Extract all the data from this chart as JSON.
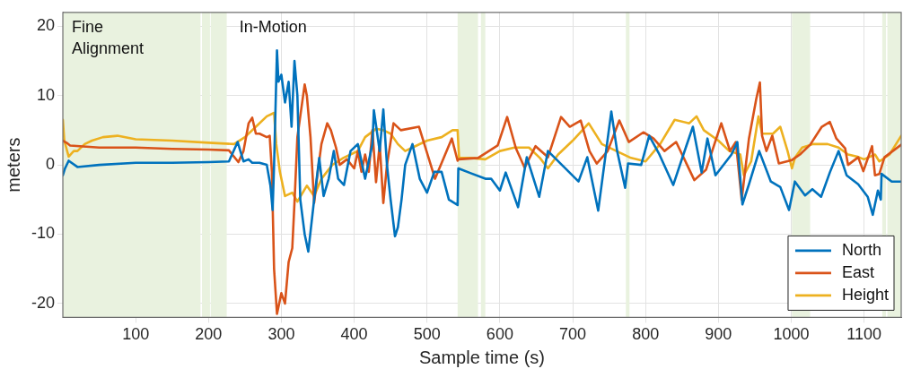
{
  "chart_data": {
    "type": "line",
    "xlabel": "Sample time (s)",
    "ylabel": "meters",
    "xlim": [
      0,
      1151
    ],
    "ylim": [
      -22,
      22
    ],
    "xticks": [
      100,
      200,
      300,
      400,
      500,
      600,
      700,
      800,
      900,
      1000,
      1100
    ],
    "yticks": [
      -20,
      -10,
      0,
      10,
      20
    ],
    "grid": true,
    "legend": "bottom right",
    "marker": "none",
    "line_style": "solid",
    "annotations": [
      "Fine Alignment",
      "In-Motion"
    ],
    "bands": [
      {
        "axis": "x",
        "from": 0,
        "to": 189,
        "color": "#e9f2df"
      },
      {
        "axis": "x",
        "from": 191,
        "to": 202,
        "color": "#e9f2df"
      },
      {
        "axis": "x",
        "from": 203,
        "to": 225,
        "color": "#e9f2df"
      },
      {
        "axis": "x",
        "from": 542,
        "to": 570,
        "color": "#e9f2df"
      },
      {
        "axis": "x",
        "from": 574,
        "to": 580,
        "color": "#e9f2df"
      },
      {
        "axis": "x",
        "from": 773,
        "to": 778,
        "color": "#e9f2df"
      },
      {
        "axis": "x",
        "from": 1001,
        "to": 1026,
        "color": "#e9f2df"
      },
      {
        "axis": "x",
        "from": 1125,
        "to": 1130,
        "color": "#e9f2df"
      },
      {
        "axis": "x",
        "from": 1132,
        "to": 1151,
        "color": "#e9f2df"
      }
    ],
    "series": [
      {
        "name": "North",
        "color": "#0072bd",
        "x": [
          0,
          3,
          8,
          20,
          50,
          100,
          150,
          200,
          228,
          240,
          248,
          255,
          260,
          270,
          280,
          285,
          288,
          290,
          294,
          296,
          300,
          305,
          310,
          314,
          318,
          322,
          326,
          332,
          337,
          345,
          352,
          358,
          365,
          372,
          378,
          386,
          395,
          405,
          415,
          425,
          427,
          435,
          440,
          445,
          450,
          456,
          460,
          465,
          470,
          480,
          490,
          500,
          510,
          520,
          530,
          542,
          543,
          560,
          580,
          588,
          600,
          608,
          625,
          637,
          654,
          666,
          687,
          708,
          720,
          735,
          753,
          761,
          772,
          776,
          794,
          805,
          819,
          838,
          852,
          865,
          877,
          885,
          896,
          918,
          926,
          933,
          942,
          956,
          972,
          985,
          997,
          1005,
          1019,
          1029,
          1041,
          1053,
          1065,
          1076,
          1092,
          1105,
          1112,
          1119,
          1123,
          1124,
          1138,
          1151
        ],
        "values": [
          -1.5,
          -0.5,
          0.6,
          -0.3,
          0,
          0.3,
          0.3,
          0.4,
          0.5,
          3.3,
          0.5,
          0.8,
          0.3,
          0.3,
          0,
          -3,
          -6.5,
          0,
          16.5,
          12,
          13,
          9,
          12,
          5.5,
          15,
          10,
          -5,
          -10,
          -12.5,
          -5,
          1,
          -4.5,
          -2,
          2,
          -2,
          -2.9,
          2,
          3,
          -2,
          3,
          7.9,
          2,
          8,
          0,
          -5,
          -10.3,
          -9,
          -5,
          0,
          3,
          -2,
          -4,
          -1,
          -1,
          -5,
          -5.8,
          -0.5,
          -1.2,
          -2,
          -2,
          -3.7,
          -1.1,
          -6.1,
          1.1,
          -4.6,
          2,
          -0.2,
          -2.4,
          1.1,
          -6.6,
          7.7,
          2,
          -3.3,
          0.2,
          0,
          4.2,
          1.5,
          -2.9,
          1.5,
          5.5,
          -1.1,
          3.8,
          -1.5,
          1.5,
          3.3,
          -5.7,
          -2.8,
          2,
          -2.4,
          -3.2,
          -6.5,
          -2.4,
          -4.4,
          -3.5,
          -4.6,
          -1.1,
          2,
          -1.5,
          -2.8,
          -4.6,
          -7.2,
          -3.7,
          -5,
          -1.3,
          -2.4,
          -2.4
        ]
      },
      {
        "name": "East",
        "color": "#d95319",
        "x": [
          0,
          5,
          10,
          50,
          100,
          150,
          200,
          228,
          241,
          248,
          255,
          260,
          265,
          270,
          280,
          284,
          287,
          290,
          294,
          300,
          305,
          310,
          315,
          318,
          322,
          332,
          335,
          340,
          345,
          350,
          355,
          363,
          368,
          375,
          380,
          390,
          400,
          405,
          410,
          415,
          420,
          425,
          430,
          435,
          440,
          445,
          454,
          464,
          489,
          511,
          534,
          542,
          543,
          570,
          597,
          610,
          622,
          634,
          649,
          666,
          684,
          696,
          711,
          723,
          733,
          748,
          764,
          777,
          797,
          811,
          826,
          842,
          867,
          883,
          904,
          916,
          924,
          932,
          942,
          952,
          957,
          960,
          966,
          974,
          983,
          1001,
          1012,
          1026,
          1042,
          1053,
          1062,
          1074,
          1078,
          1092,
          1099,
          1111,
          1115,
          1121,
          1128,
          1151
        ],
        "values": [
          3.5,
          3.2,
          2.8,
          2.5,
          2.5,
          2.3,
          2.2,
          2.1,
          0.4,
          2,
          6,
          6.8,
          4.5,
          4.5,
          4,
          4.2,
          -1,
          -15,
          -21.5,
          -18.5,
          -20,
          -14,
          -12,
          -5.5,
          4,
          11.6,
          10,
          4,
          -5.5,
          -1,
          3,
          6,
          5,
          2.5,
          0,
          0.8,
          -0.5,
          2,
          -1,
          1.5,
          -1,
          5,
          -2.5,
          3,
          -5.5,
          0,
          6,
          5,
          5.5,
          -2,
          3.8,
          0.6,
          0.8,
          1,
          2.8,
          6.9,
          2.4,
          -0.4,
          2.7,
          1.1,
          6.9,
          5.5,
          6.4,
          2,
          0.2,
          2,
          6.4,
          3.3,
          4.7,
          3.8,
          2,
          3.3,
          -2.2,
          -0.7,
          6,
          2,
          3.3,
          -5,
          3.8,
          9.5,
          11.9,
          4.2,
          2,
          4.2,
          0.2,
          0.7,
          1.5,
          2.9,
          5.5,
          6.2,
          3.8,
          2.4,
          0,
          1.1,
          -0.9,
          2.7,
          -1.5,
          -1.3,
          1.1,
          2.9
        ]
      },
      {
        "name": "Height",
        "color": "#edb120",
        "x": [
          0,
          2,
          8,
          15,
          20,
          30,
          40,
          55,
          75,
          100,
          150,
          200,
          235,
          250,
          265,
          280,
          290,
          293,
          298,
          305,
          315,
          322,
          335,
          345,
          355,
          370,
          385,
          395,
          405,
          415,
          430,
          440,
          450,
          460,
          470,
          480,
          500,
          520,
          535,
          542,
          544,
          560,
          580,
          600,
          620,
          640,
          655,
          666,
          680,
          700,
          722,
          740,
          760,
          780,
          800,
          820,
          840,
          860,
          870,
          880,
          900,
          915,
          930,
          935,
          945,
          955,
          960,
          975,
          985,
          995,
          1001,
          1005,
          1015,
          1030,
          1050,
          1065,
          1078,
          1090,
          1100,
          1115,
          1121,
          1135,
          1151
        ],
        "values": [
          6.5,
          3.5,
          1.2,
          2,
          2,
          3,
          3.5,
          4,
          4.2,
          3.7,
          3.5,
          3.2,
          3,
          4,
          5.5,
          7,
          7.5,
          3,
          -1,
          -4.5,
          -4,
          -5.3,
          -3,
          -4.5,
          -2,
          0,
          1,
          1.5,
          2,
          4,
          5.2,
          5,
          4.5,
          3,
          2,
          2.5,
          3.5,
          4,
          5,
          5,
          1,
          1,
          0.8,
          2,
          2.5,
          2.5,
          1,
          -0.5,
          1.5,
          3.5,
          6,
          3,
          2,
          1,
          0.5,
          3,
          6.5,
          6,
          7,
          5,
          3.5,
          2,
          1.5,
          -1.5,
          0.5,
          7,
          4.5,
          4.5,
          5.5,
          2,
          -0.5,
          1,
          2.5,
          3,
          3,
          2.5,
          1.5,
          1.2,
          0.8,
          1.5,
          0.5,
          1.5,
          4.2
        ]
      }
    ]
  }
}
